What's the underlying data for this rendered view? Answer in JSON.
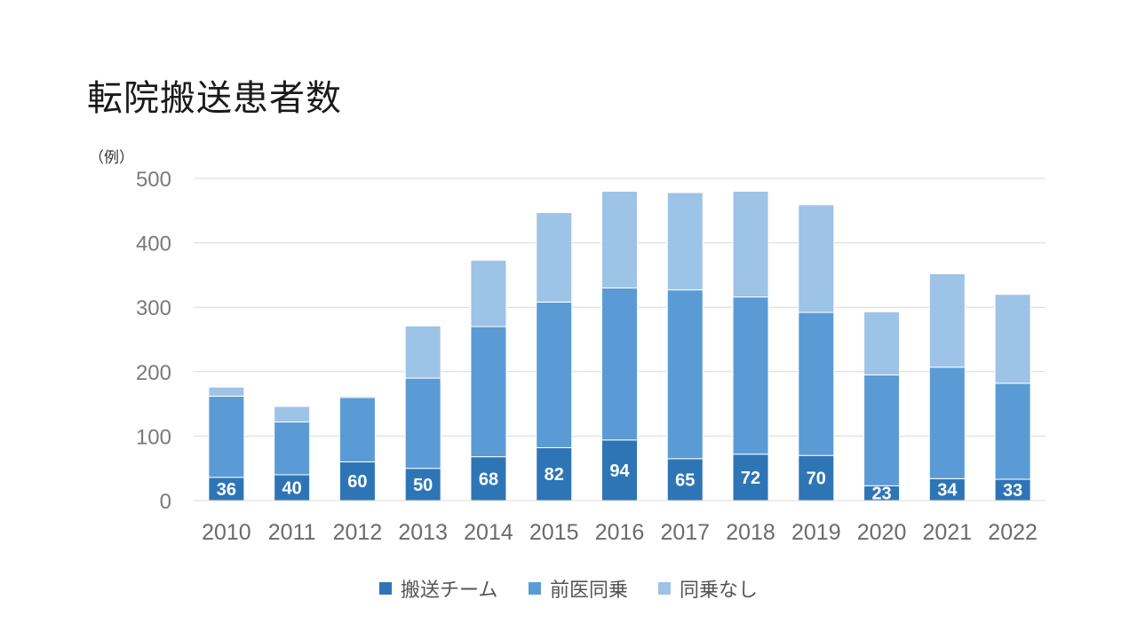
{
  "title": "転院搬送患者数",
  "chart_data": {
    "type": "bar",
    "stacked": true,
    "title": "",
    "unit_label": "（例）",
    "xlabel": "",
    "ylabel": "",
    "ylim": [
      0,
      500
    ],
    "yticks": [
      0,
      100,
      200,
      300,
      400,
      500
    ],
    "grid": true,
    "legend_position": "bottom",
    "categories": [
      "2010",
      "2011",
      "2012",
      "2013",
      "2014",
      "2015",
      "2016",
      "2017",
      "2018",
      "2019",
      "2020",
      "2021",
      "2022"
    ],
    "series": [
      {
        "name": "搬送チーム",
        "color": "#2e75b6",
        "show_labels": true,
        "values": [
          36,
          40,
          60,
          50,
          68,
          82,
          94,
          65,
          72,
          70,
          23,
          34,
          33
        ]
      },
      {
        "name": "前医同乗",
        "color": "#5b9bd5",
        "show_labels": false,
        "values": [
          126,
          82,
          100,
          140,
          202,
          226,
          236,
          262,
          244,
          222,
          172,
          173,
          149
        ]
      },
      {
        "name": "同乗なし",
        "color": "#9dc3e6",
        "show_labels": false,
        "values": [
          14,
          24,
          2,
          81,
          103,
          139,
          150,
          151,
          164,
          167,
          98,
          145,
          138
        ]
      }
    ]
  }
}
